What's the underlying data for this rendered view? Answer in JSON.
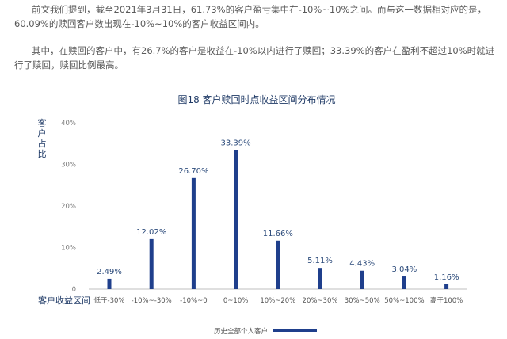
{
  "paragraphs": [
    "前文我们提到，截至2021年3月31日，61.73%的客户盈亏集中在-10%~10%之间。而与这一数据相对应的是，60.09%的赎回客户数出现在-10%~10%的客户收益区间内。",
    "其中，在赎回的客户中，有26.7%的客户是收益在-10%以内进行了赎回；33.39%的客户在盈利不超过10%时就进行了赎回，赎回比例最高。"
  ],
  "colors": {
    "bar": "#1f3f8c",
    "title": "#1f3a66",
    "text": "#555555"
  },
  "chart_data": {
    "type": "bar",
    "title": "图18   客户赎回时点收益区间分布情况",
    "xlabel": "客户收益区间",
    "ylabel": "客户占比",
    "ylim": [
      0,
      40
    ],
    "yticks": [
      "0",
      "10%",
      "20%",
      "30%",
      "40%"
    ],
    "ytick_values": [
      0,
      10,
      20,
      30,
      40
    ],
    "categories": [
      "低于-30%",
      "-10%~-30%",
      "-10%~0",
      "0~10%",
      "10%~20%",
      "20%~30%",
      "30%~50%",
      "50%~100%",
      "高于100%"
    ],
    "series": [
      {
        "name": "历史全部个人客户",
        "values": [
          2.49,
          12.02,
          26.7,
          33.39,
          11.66,
          5.11,
          4.43,
          3.04,
          1.16
        ],
        "labels": [
          "2.49%",
          "12.02%",
          "26.70%",
          "33.39%",
          "11.66%",
          "5.11%",
          "4.43%",
          "3.04%",
          "1.16%"
        ]
      }
    ],
    "grid": false,
    "legend": "bottom-center"
  }
}
